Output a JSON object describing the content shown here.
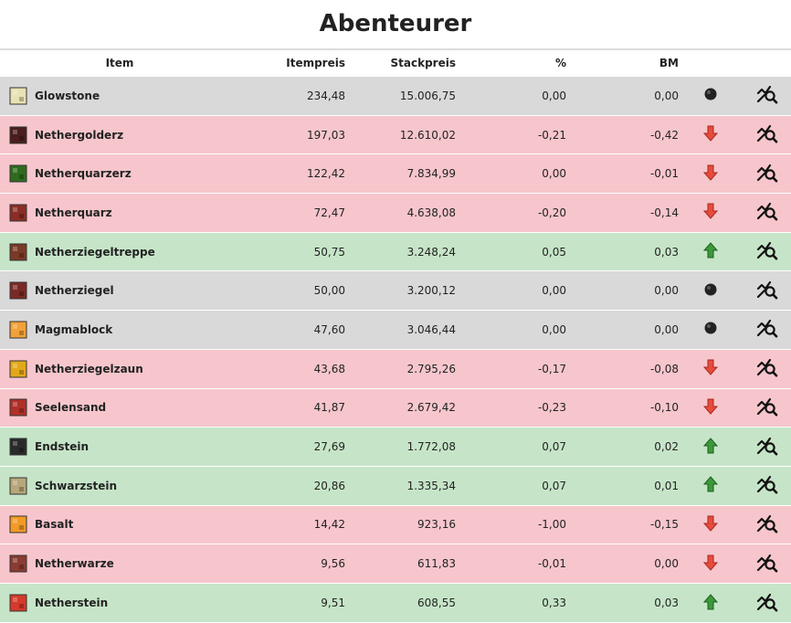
{
  "page": {
    "title": "Abenteurer"
  },
  "table": {
    "headers": {
      "item": "Item",
      "itempreis": "Itempreis",
      "stackpreis": "Stackpreis",
      "percent": "%",
      "bm": "BM"
    },
    "rows": [
      {
        "name": "Glowstone",
        "itempreis": "234,48",
        "stackpreis": "15.006,75",
        "percent": "0,00",
        "bm": "0,00",
        "trend": "neutral",
        "icon": "glowstone-icon",
        "color": "#e8e2b4"
      },
      {
        "name": "Nethergolderz",
        "itempreis": "197,03",
        "stackpreis": "12.610,02",
        "percent": "-0,21",
        "bm": "-0,42",
        "trend": "down",
        "icon": "nether-gold-ore-icon",
        "color": "#4a1e1e"
      },
      {
        "name": "Netherquarzerz",
        "itempreis": "122,42",
        "stackpreis": "7.834,99",
        "percent": "0,00",
        "bm": "-0,01",
        "trend": "down",
        "icon": "nether-quartz-ore-icon",
        "color": "#2f6b1e"
      },
      {
        "name": "Netherquarz",
        "itempreis": "72,47",
        "stackpreis": "4.638,08",
        "percent": "-0,20",
        "bm": "-0,14",
        "trend": "down",
        "icon": "nether-quartz-icon",
        "color": "#8a2e25"
      },
      {
        "name": "Netherziegeltreppe",
        "itempreis": "50,75",
        "stackpreis": "3.248,24",
        "percent": "0,05",
        "bm": "0,03",
        "trend": "up",
        "icon": "nether-brick-stairs-icon",
        "color": "#7a3a25"
      },
      {
        "name": "Netherziegel",
        "itempreis": "50,00",
        "stackpreis": "3.200,12",
        "percent": "0,00",
        "bm": "0,00",
        "trend": "neutral",
        "icon": "nether-brick-icon",
        "color": "#7a2a25"
      },
      {
        "name": "Magmablock",
        "itempreis": "47,60",
        "stackpreis": "3.046,44",
        "percent": "0,00",
        "bm": "0,00",
        "trend": "neutral",
        "icon": "magma-block-icon",
        "color": "#f2a13a"
      },
      {
        "name": "Netherziegelzaun",
        "itempreis": "43,68",
        "stackpreis": "2.795,26",
        "percent": "-0,17",
        "bm": "-0,08",
        "trend": "down",
        "icon": "nether-brick-fence-icon",
        "color": "#e3a81a"
      },
      {
        "name": "Seelensand",
        "itempreis": "41,87",
        "stackpreis": "2.679,42",
        "percent": "-0,23",
        "bm": "-0,10",
        "trend": "down",
        "icon": "soul-sand-icon",
        "color": "#b0302a"
      },
      {
        "name": "Endstein",
        "itempreis": "27,69",
        "stackpreis": "1.772,08",
        "percent": "0,07",
        "bm": "0,02",
        "trend": "up",
        "icon": "end-stone-icon",
        "color": "#2a2a2a"
      },
      {
        "name": "Schwarzstein",
        "itempreis": "20,86",
        "stackpreis": "1.335,34",
        "percent": "0,07",
        "bm": "0,01",
        "trend": "up",
        "icon": "blackstone-icon",
        "color": "#b8a77a"
      },
      {
        "name": "Basalt",
        "itempreis": "14,42",
        "stackpreis": "923,16",
        "percent": "-1,00",
        "bm": "-0,15",
        "trend": "down",
        "icon": "basalt-icon",
        "color": "#f29a26"
      },
      {
        "name": "Netherwarze",
        "itempreis": "9,56",
        "stackpreis": "611,83",
        "percent": "-0,01",
        "bm": "0,00",
        "trend": "down",
        "icon": "nether-wart-icon",
        "color": "#8a3b33"
      },
      {
        "name": "Netherstein",
        "itempreis": "9,51",
        "stackpreis": "608,55",
        "percent": "0,33",
        "bm": "0,03",
        "trend": "up",
        "icon": "netherrack-icon",
        "color": "#d43a2a"
      }
    ]
  },
  "colors": {
    "neutral_row": "#d9d9d9",
    "down_row": "#f6c6cc",
    "up_row": "#c6e5c8",
    "down_arrow": "#e84b3c",
    "up_arrow": "#3a9a3a",
    "neutral_dot": "#222222"
  }
}
